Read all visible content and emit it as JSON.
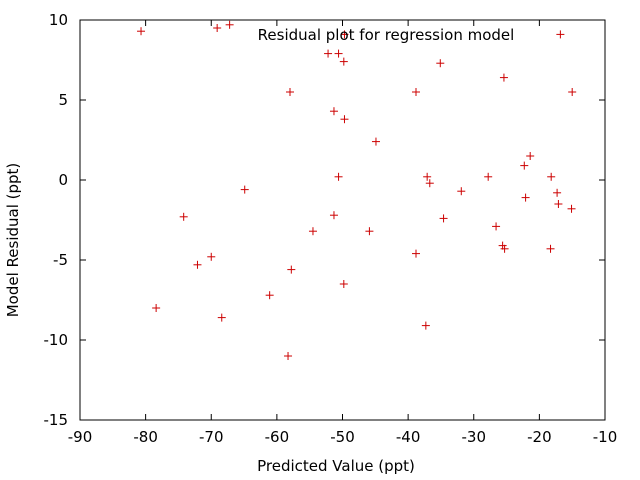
{
  "chart_data": {
    "type": "scatter",
    "title": "Residual plot for regression model",
    "xlabel": "Predicted Value (ppt)",
    "ylabel": "Model Residual (ppt)",
    "xlim": [
      -90,
      -10
    ],
    "ylim": [
      -15,
      10
    ],
    "xticks": [
      -90,
      -80,
      -70,
      -60,
      -50,
      -40,
      -30,
      -20,
      -10
    ],
    "yticks": [
      -15,
      -10,
      -5,
      0,
      5,
      10
    ],
    "grid": false,
    "marker": "+",
    "marker_color": "#cc0000",
    "points": [
      [
        -80.7,
        9.3
      ],
      [
        -69.1,
        9.5
      ],
      [
        -67.2,
        9.7
      ],
      [
        -52.2,
        7.9
      ],
      [
        -50.6,
        7.9
      ],
      [
        -49.7,
        9.1
      ],
      [
        -49.8,
        7.4
      ],
      [
        -58.0,
        5.5
      ],
      [
        -51.3,
        4.3
      ],
      [
        -49.7,
        3.8
      ],
      [
        -44.9,
        2.4
      ],
      [
        -38.8,
        5.5
      ],
      [
        -35.1,
        7.3
      ],
      [
        -25.4,
        6.4
      ],
      [
        -16.8,
        9.1
      ],
      [
        -15.0,
        5.5
      ],
      [
        -21.4,
        1.5
      ],
      [
        -22.3,
        0.9
      ],
      [
        -18.2,
        0.2
      ],
      [
        -27.8,
        0.2
      ],
      [
        -37.1,
        0.2
      ],
      [
        -36.7,
        -0.2
      ],
      [
        -31.9,
        -0.7
      ],
      [
        -50.6,
        0.2
      ],
      [
        -64.9,
        -0.6
      ],
      [
        -17.3,
        -0.8
      ],
      [
        -22.1,
        -1.1
      ],
      [
        -17.1,
        -1.5
      ],
      [
        -15.1,
        -1.8
      ],
      [
        -74.2,
        -2.3
      ],
      [
        -51.3,
        -2.2
      ],
      [
        -34.6,
        -2.4
      ],
      [
        -26.6,
        -2.9
      ],
      [
        -54.5,
        -3.2
      ],
      [
        -45.9,
        -3.2
      ],
      [
        -25.6,
        -4.1
      ],
      [
        -25.3,
        -4.3
      ],
      [
        -18.3,
        -4.3
      ],
      [
        -38.8,
        -4.6
      ],
      [
        -70.0,
        -4.8
      ],
      [
        -72.1,
        -5.3
      ],
      [
        -57.8,
        -5.6
      ],
      [
        -49.8,
        -6.5
      ],
      [
        -61.1,
        -7.2
      ],
      [
        -78.4,
        -8.0
      ],
      [
        -68.4,
        -8.6
      ],
      [
        -37.3,
        -9.1
      ],
      [
        -58.3,
        -11.0
      ]
    ]
  }
}
